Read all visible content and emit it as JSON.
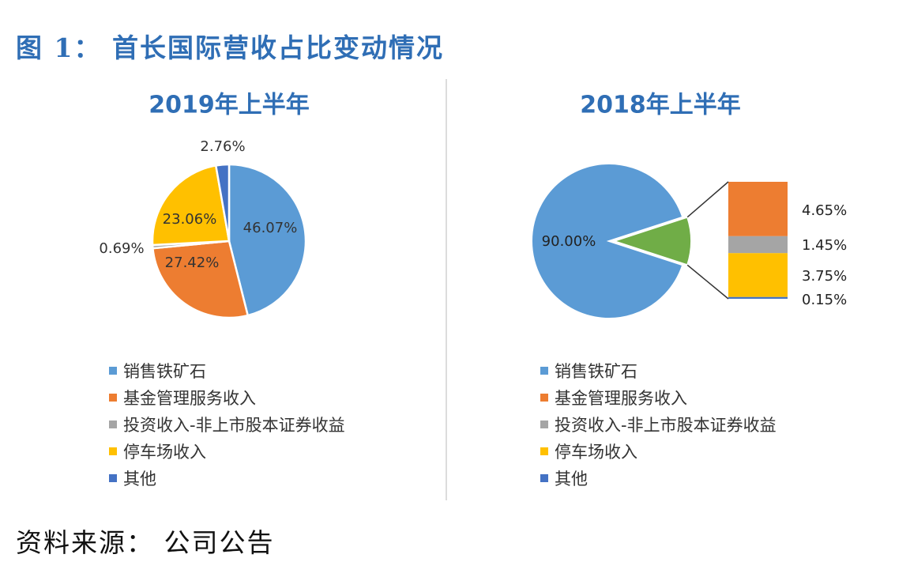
{
  "figure": {
    "title": "图 1： 首长国际营收占比变动情况",
    "source": "资料来源： 公司公告"
  },
  "colors": {
    "title": "#2f6eb5",
    "blue": "#5b9bd5",
    "orange": "#ed7d31",
    "gray": "#a5a5a5",
    "yellow": "#ffc000",
    "darkblue": "#4472c4",
    "green": "#70ad47"
  },
  "chart_data": [
    {
      "type": "pie",
      "title": "2019年上半年",
      "legend_position": "bottom",
      "categories": [
        "销售铁矿石",
        "基金管理服务收入",
        "投资收入-非上市股本证券收益",
        "停车场收入",
        "其他"
      ],
      "values": [
        46.07,
        27.42,
        0.69,
        23.06,
        2.76
      ],
      "labels": [
        "46.07%",
        "27.42%",
        "0.69%",
        "23.06%",
        "2.76%"
      ],
      "colors": [
        "#5b9bd5",
        "#ed7d31",
        "#a5a5a5",
        "#ffc000",
        "#4472c4"
      ]
    },
    {
      "type": "pie",
      "subtype": "bar-of-pie",
      "title": "2018年上半年",
      "legend_position": "bottom",
      "categories": [
        "销售铁矿石",
        "基金管理服务收入",
        "投资收入-非上市股本证券收益",
        "停车场收入",
        "其他"
      ],
      "values": [
        90.0,
        4.65,
        1.45,
        3.75,
        0.15
      ],
      "labels": [
        "90.00%",
        "4.65%",
        "1.45%",
        "3.75%",
        "0.15%"
      ],
      "colors": [
        "#5b9bd5",
        "#ed7d31",
        "#a5a5a5",
        "#ffc000",
        "#4472c4"
      ],
      "other_slice_color": "#70ad47"
    }
  ]
}
